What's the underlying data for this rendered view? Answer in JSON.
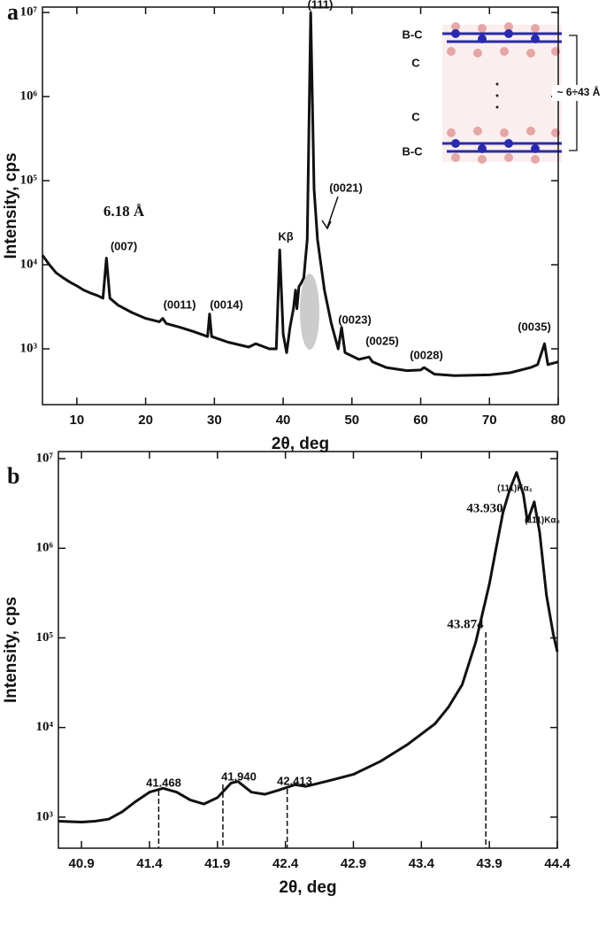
{
  "chart_data": [
    {
      "type": "line",
      "panel_label": "a",
      "xlabel": "2θ, deg",
      "ylabel": "Intensity, cps",
      "yscale": "log",
      "color": "#111111",
      "xlim": [
        5,
        80
      ],
      "xticks": [
        10,
        20,
        30,
        40,
        50,
        60,
        70,
        80
      ],
      "ylim": [
        217,
        11600000
      ],
      "yticks": [
        {
          "value": 1000,
          "label": "10³"
        },
        {
          "value": 10000,
          "label": "10⁴"
        },
        {
          "value": 100000,
          "label": "10⁵"
        },
        {
          "value": 1000000,
          "label": "10⁶"
        },
        {
          "value": 10000000,
          "label": "10⁷"
        }
      ],
      "x": [
        5,
        6,
        7,
        8,
        9,
        10,
        11,
        12,
        13,
        13.8,
        14.3,
        14.8,
        16,
        18,
        20,
        22,
        22.5,
        23,
        25,
        27,
        29,
        29.3,
        29.6,
        32,
        35,
        36,
        38,
        39,
        39.5,
        40,
        40.5,
        41,
        41.5,
        41.8,
        42,
        42.3,
        42.6,
        43,
        43.5,
        44,
        44.5,
        45,
        46,
        47,
        48,
        48.5,
        49,
        51,
        52.5,
        53,
        55,
        58,
        60,
        60.5,
        62,
        65,
        70,
        73,
        76,
        77,
        78,
        78.5,
        80
      ],
      "values": [
        13000,
        10000,
        8000,
        7000,
        6200,
        5600,
        5000,
        4600,
        4300,
        4000,
        12000,
        4000,
        3300,
        2700,
        2300,
        2100,
        2300,
        2000,
        1800,
        1600,
        1400,
        2600,
        1400,
        1200,
        1050,
        1150,
        1000,
        1000,
        15000,
        1500,
        900,
        1800,
        3000,
        5000,
        3000,
        5500,
        6000,
        7000,
        20000,
        10000000,
        80000,
        20000,
        5000,
        2000,
        1000,
        1800,
        900,
        750,
        800,
        700,
        600,
        550,
        560,
        600,
        500,
        480,
        490,
        520,
        600,
        650,
        1150,
        650,
        700
      ],
      "annotations": [
        "(111)",
        "(0021)",
        "6.18 Å",
        "(007)",
        "(0011)",
        "(0014)",
        "Kβ",
        "(0023)",
        "(0025)",
        "(0028)",
        "(0035)"
      ],
      "inset": {
        "labels": [
          "B-C",
          "C",
          "C",
          "B-C"
        ],
        "spacing": "~ 6÷43 Å"
      }
    },
    {
      "type": "line",
      "panel_label": "b",
      "xlabel": "2θ, deg",
      "ylabel": "Intensity, cps",
      "yscale": "log",
      "color": "#111111",
      "xlim": [
        40.73,
        44.4
      ],
      "xticks": [
        40.9,
        41.4,
        41.9,
        42.4,
        42.9,
        43.4,
        43.9,
        44.4
      ],
      "ylim": [
        450,
        12000000
      ],
      "yticks": [
        {
          "value": 1000,
          "label": "10³"
        },
        {
          "value": 10000,
          "label": "10⁴"
        },
        {
          "value": 100000,
          "label": "10⁵"
        },
        {
          "value": 1000000,
          "label": "10⁶"
        },
        {
          "value": 10000000,
          "label": "10⁷"
        }
      ],
      "x": [
        40.73,
        40.9,
        41.0,
        41.1,
        41.2,
        41.3,
        41.4,
        41.5,
        41.6,
        41.7,
        41.8,
        41.9,
        42.0,
        42.05,
        42.15,
        42.25,
        42.35,
        42.47,
        42.55,
        42.7,
        42.9,
        43.1,
        43.3,
        43.5,
        43.6,
        43.7,
        43.8,
        43.9,
        43.95,
        44.0,
        44.05,
        44.1,
        44.15,
        44.18,
        44.23,
        44.27,
        44.32,
        44.37,
        44.4
      ],
      "values": [
        900,
        880,
        900,
        950,
        1150,
        1500,
        1900,
        2100,
        1900,
        1550,
        1400,
        1650,
        2400,
        2500,
        1900,
        1800,
        2000,
        2300,
        2200,
        2500,
        3000,
        4200,
        6500,
        11000,
        17000,
        30000,
        90000,
        400000,
        1000000,
        2500000,
        4500000,
        7000000,
        4000000,
        2000000,
        3300000,
        1500000,
        300000,
        110000,
        70000
      ],
      "peaks": [
        {
          "value": 41.468,
          "label": "41.468"
        },
        {
          "value": 41.94,
          "label": "41.940"
        },
        {
          "value": 42.413,
          "label": "42.413"
        },
        {
          "value": 43.874,
          "label": "43.874"
        },
        {
          "value": 43.93,
          "label": "43.930"
        }
      ],
      "annotations": [
        "(111)Kα₁",
        "(111)Kα₂"
      ]
    }
  ]
}
